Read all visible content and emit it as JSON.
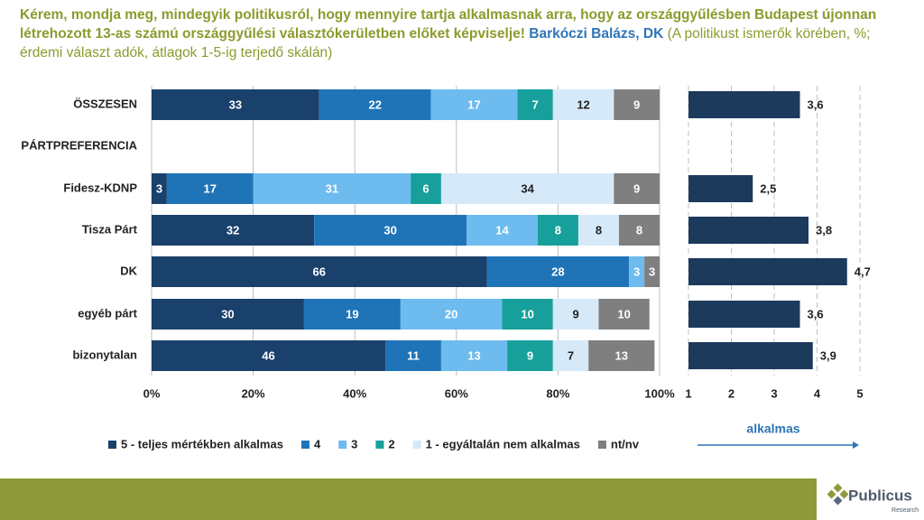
{
  "chart_data": [
    {
      "type": "stacked-bar-horizontal",
      "title": "Kérem, mondja meg, mindegyik politikusról, hogy mennyire tartja alkalmasnak arra, hogy az országgyűlésben Budapest újonnan létrehozott 13-as számú országgyűlési választókerületben előket képviselje!",
      "highlight": "Barkóczi Balázs, DK",
      "subtitle": "(A politikust ismerők körében, %; érdemi választ adók, átlagok 1-5-ig terjedő skálán)",
      "categories": [
        "ÖSSZESEN",
        "PÁRTPREFERENCIA",
        "Fidesz-KDNP",
        "Tisza Párt",
        "DK",
        "egyéb párt",
        "bizonytalan"
      ],
      "series": [
        {
          "name": "5 - teljes mértékben alkalmas",
          "color": "#1a416c",
          "values": [
            33,
            null,
            3,
            32,
            66,
            30,
            46
          ]
        },
        {
          "name": "4",
          "color": "#1f74b8",
          "values": [
            22,
            null,
            17,
            30,
            28,
            19,
            11
          ]
        },
        {
          "name": "3",
          "color": "#6dbbef",
          "values": [
            17,
            null,
            31,
            14,
            3,
            20,
            13
          ]
        },
        {
          "name": "2",
          "color": "#17a09b",
          "values": [
            7,
            null,
            6,
            8,
            null,
            10,
            9
          ]
        },
        {
          "name": "1 - egyáltalán nem alkalmas",
          "color": "#d5e9f9",
          "values": [
            12,
            null,
            34,
            8,
            null,
            9,
            7
          ]
        },
        {
          "name": "nt/nv",
          "color": "#7f7f7f",
          "values": [
            9,
            null,
            9,
            8,
            3,
            10,
            13
          ]
        }
      ],
      "xlim": [
        0,
        100
      ],
      "xticks": [
        {
          "value": 0,
          "label": "0%"
        },
        {
          "value": 20,
          "label": "20%"
        },
        {
          "value": 40,
          "label": "40%"
        },
        {
          "value": 60,
          "label": "60%"
        },
        {
          "value": 80,
          "label": "80%"
        },
        {
          "value": 100,
          "label": "100%"
        }
      ],
      "grid": true
    },
    {
      "type": "bar-horizontal",
      "x_label": "alkalmas",
      "color": "#1b3a5c",
      "values": [
        3.6,
        null,
        2.5,
        3.8,
        4.7,
        3.6,
        3.9
      ],
      "value_labels": [
        "3,6",
        null,
        "2,5",
        "3,8",
        "4,7",
        "3,6",
        "3,9"
      ],
      "xlim": [
        1,
        5
      ],
      "xticks": [
        1,
        2,
        3,
        4,
        5
      ],
      "grid": true
    }
  ],
  "footer": {
    "brand": "Publicus",
    "sub": "Research"
  }
}
